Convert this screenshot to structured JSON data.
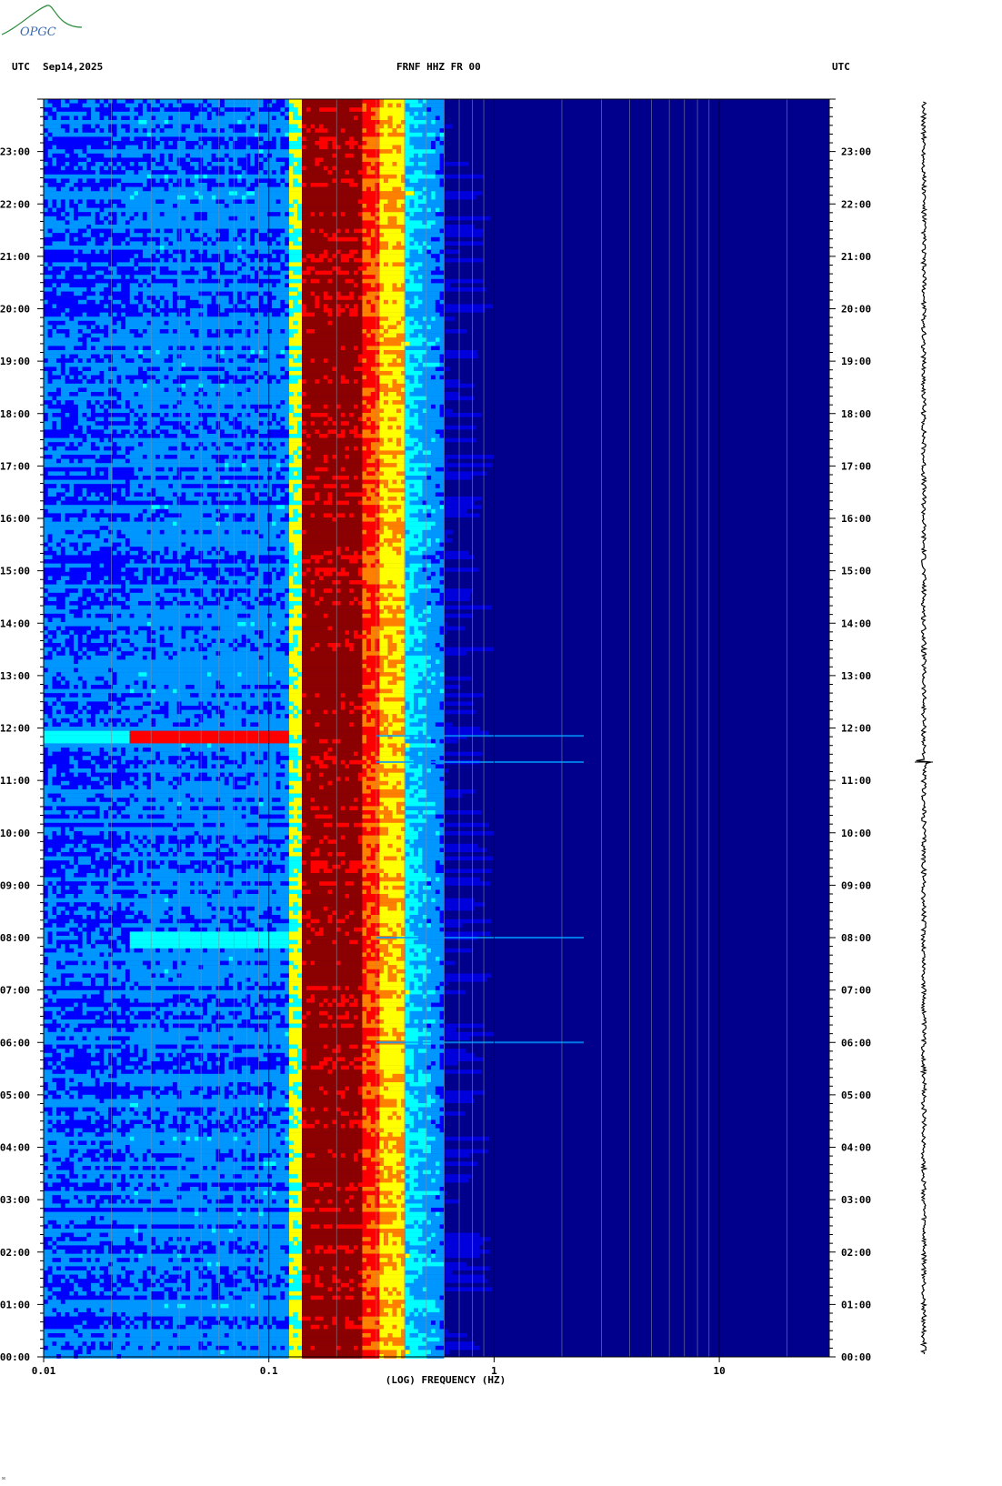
{
  "logo": {
    "text": "OPGC",
    "color": "#2a8a3a"
  },
  "header": {
    "left_tz": "UTC",
    "date": "Sep14,2025",
    "title": "FRNF HHZ FR 00",
    "right_tz": "UTC"
  },
  "chart_data": {
    "type": "heatmap",
    "title": "FRNF HHZ FR 00",
    "xlabel": "(LOG) FREQUENCY (HZ)",
    "xscale": "log",
    "xlim": [
      0.01,
      30
    ],
    "xticks": [
      "0.01",
      "0.1",
      "1",
      "10"
    ],
    "ylim_hours": [
      0,
      24
    ],
    "yticks": [
      "00:00",
      "01:00",
      "02:00",
      "03:00",
      "04:00",
      "05:00",
      "06:00",
      "07:00",
      "08:00",
      "09:00",
      "10:00",
      "11:00",
      "12:00",
      "13:00",
      "14:00",
      "15:00",
      "16:00",
      "17:00",
      "18:00",
      "19:00",
      "20:00",
      "21:00",
      "22:00",
      "23:00"
    ],
    "colormap": [
      "#00008c",
      "#0000ff",
      "#0096ff",
      "#00ffff",
      "#ffff00",
      "#ff8000",
      "#ff0000",
      "#8b0000"
    ],
    "microseism_band_hz": [
      0.14,
      0.25
    ],
    "events_hours": [
      11.35,
      11.85,
      8.0,
      6.0
    ]
  },
  "stamp": "ᴍ"
}
